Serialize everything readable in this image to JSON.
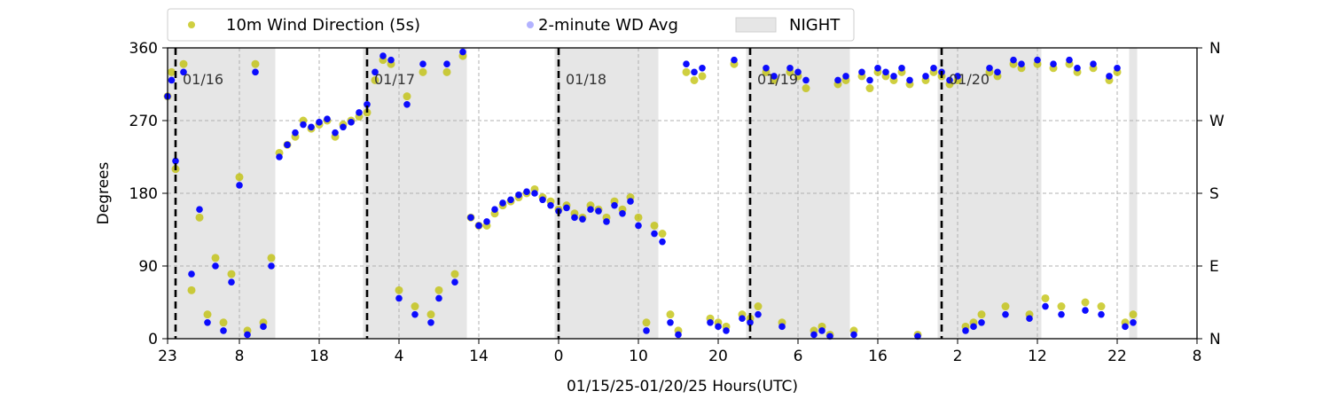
{
  "chart_data": {
    "type": "scatter",
    "xlabel": "01/15/25-01/20/25  Hours(UTC)",
    "ylabel": "Degrees",
    "x_range_hours_utc": [
      23,
      152
    ],
    "x_ticks": [
      {
        "hour": 23,
        "label": "23"
      },
      {
        "hour": 32,
        "label": "8"
      },
      {
        "hour": 42,
        "label": "18"
      },
      {
        "hour": 52,
        "label": "4"
      },
      {
        "hour": 62,
        "label": "14"
      },
      {
        "hour": 72,
        "label": "0"
      },
      {
        "hour": 82,
        "label": "10"
      },
      {
        "hour": 92,
        "label": "20"
      },
      {
        "hour": 102,
        "label": "6"
      },
      {
        "hour": 112,
        "label": "16"
      },
      {
        "hour": 122,
        "label": "2"
      },
      {
        "hour": 132,
        "label": "12"
      },
      {
        "hour": 142,
        "label": "22"
      },
      {
        "hour": 152,
        "label": "8"
      }
    ],
    "ylim": [
      0,
      360
    ],
    "y_ticks": [
      0,
      90,
      180,
      270,
      360
    ],
    "y_ticks_right": [
      "N",
      "E",
      "S",
      "W",
      "N"
    ],
    "grid": "dashed",
    "legend": {
      "placement": "top",
      "entries": [
        {
          "label": "10m Wind Direction (5s)",
          "color": "#bfbf00",
          "kind": "marker"
        },
        {
          "label": "2-minute WD Avg",
          "color": "#0000ff",
          "kind": "marker-faded"
        },
        {
          "label": "NIGHT",
          "color": "#e6e6e6",
          "kind": "patch"
        }
      ]
    },
    "day_markers": [
      {
        "hour": 24,
        "label": "01/16"
      },
      {
        "hour": 48,
        "label": "01/17"
      },
      {
        "hour": 72,
        "label": "01/18"
      },
      {
        "hour": 96,
        "label": "01/19"
      },
      {
        "hour": 120,
        "label": "01/20"
      }
    ],
    "night_periods": [
      [
        23,
        36.5
      ],
      [
        47.5,
        60.5
      ],
      [
        71.5,
        84.5
      ],
      [
        95.5,
        108.5
      ],
      [
        119.5,
        132.5
      ],
      [
        143.5,
        144.5
      ]
    ],
    "series": [
      {
        "name": "10m Wind Direction (5s)",
        "color": "#bfbf00",
        "x": [
          23,
          23.5,
          24,
          25,
          26,
          27,
          28,
          29,
          30,
          31,
          32,
          33,
          34,
          35,
          36,
          37,
          38,
          39,
          40,
          41,
          42,
          43,
          44,
          45,
          46,
          47,
          48,
          49,
          50,
          51,
          52,
          53,
          54,
          55,
          56,
          57,
          58,
          59,
          60,
          61,
          62,
          63,
          64,
          65,
          66,
          67,
          68,
          69,
          70,
          71,
          72,
          73,
          74,
          75,
          76,
          77,
          78,
          79,
          80,
          81,
          82,
          83,
          84,
          85,
          86,
          87,
          88,
          89,
          90,
          91,
          92,
          93,
          94,
          95,
          96,
          97,
          98,
          99,
          100,
          101,
          102,
          103,
          104,
          105,
          106,
          107,
          108,
          109,
          110,
          111,
          112,
          113,
          114,
          115,
          116,
          117,
          118,
          119,
          120,
          121,
          122,
          123,
          124,
          125,
          126,
          127,
          128,
          129,
          130,
          131,
          132,
          133,
          134,
          135,
          136,
          137,
          138,
          139,
          140,
          141,
          142,
          143,
          144
        ],
        "y": [
          300,
          330,
          210,
          340,
          60,
          150,
          30,
          100,
          20,
          80,
          200,
          10,
          340,
          20,
          100,
          230,
          240,
          250,
          270,
          260,
          265,
          270,
          250,
          265,
          270,
          275,
          280,
          320,
          345,
          340,
          60,
          300,
          40,
          330,
          30,
          60,
          330,
          80,
          350,
          150,
          140,
          140,
          155,
          165,
          170,
          175,
          180,
          185,
          175,
          170,
          160,
          165,
          155,
          150,
          165,
          160,
          150,
          170,
          160,
          175,
          150,
          20,
          140,
          130,
          30,
          10,
          330,
          320,
          325,
          25,
          20,
          15,
          340,
          30,
          25,
          40,
          330,
          320,
          20,
          330,
          325,
          310,
          10,
          15,
          5,
          315,
          320,
          10,
          325,
          310,
          330,
          325,
          320,
          330,
          315,
          5,
          320,
          330,
          325,
          315,
          320,
          15,
          20,
          30,
          330,
          325,
          40,
          340,
          335,
          30,
          340,
          50,
          335,
          40,
          340,
          330,
          45,
          335,
          40,
          320,
          330,
          20,
          30
        ]
      },
      {
        "name": "2-minute WD Avg",
        "color": "#0000ff",
        "x": [
          23,
          23.5,
          24,
          25,
          26,
          27,
          28,
          29,
          30,
          31,
          32,
          33,
          34,
          35,
          36,
          37,
          38,
          39,
          40,
          41,
          42,
          43,
          44,
          45,
          46,
          47,
          48,
          49,
          50,
          51,
          52,
          53,
          54,
          55,
          56,
          57,
          58,
          59,
          60,
          61,
          62,
          63,
          64,
          65,
          66,
          67,
          68,
          69,
          70,
          71,
          72,
          73,
          74,
          75,
          76,
          77,
          78,
          79,
          80,
          81,
          82,
          83,
          84,
          85,
          86,
          87,
          88,
          89,
          90,
          91,
          92,
          93,
          94,
          95,
          96,
          97,
          98,
          99,
          100,
          101,
          102,
          103,
          104,
          105,
          106,
          107,
          108,
          109,
          110,
          111,
          112,
          113,
          114,
          115,
          116,
          117,
          118,
          119,
          120,
          121,
          122,
          123,
          124,
          125,
          126,
          127,
          128,
          129,
          130,
          131,
          132,
          133,
          134,
          135,
          136,
          137,
          138,
          139,
          140,
          141,
          142,
          143,
          144
        ],
        "y": [
          300,
          320,
          220,
          330,
          80,
          160,
          20,
          90,
          10,
          70,
          190,
          5,
          330,
          15,
          90,
          225,
          240,
          255,
          265,
          262,
          268,
          272,
          255,
          262,
          268,
          280,
          290,
          330,
          350,
          345,
          50,
          290,
          30,
          340,
          20,
          50,
          340,
          70,
          355,
          150,
          140,
          145,
          160,
          168,
          172,
          178,
          182,
          180,
          172,
          165,
          158,
          162,
          150,
          148,
          160,
          158,
          145,
          165,
          155,
          170,
          140,
          10,
          130,
          120,
          20,
          5,
          340,
          330,
          335,
          20,
          15,
          10,
          345,
          25,
          20,
          30,
          335,
          325,
          15,
          335,
          330,
          320,
          5,
          10,
          3,
          320,
          325,
          5,
          330,
          320,
          335,
          330,
          325,
          335,
          320,
          3,
          325,
          335,
          330,
          320,
          325,
          10,
          15,
          20,
          335,
          330,
          30,
          345,
          340,
          25,
          345,
          40,
          340,
          30,
          345,
          335,
          35,
          340,
          30,
          325,
          335,
          15,
          20
        ]
      }
    ]
  }
}
